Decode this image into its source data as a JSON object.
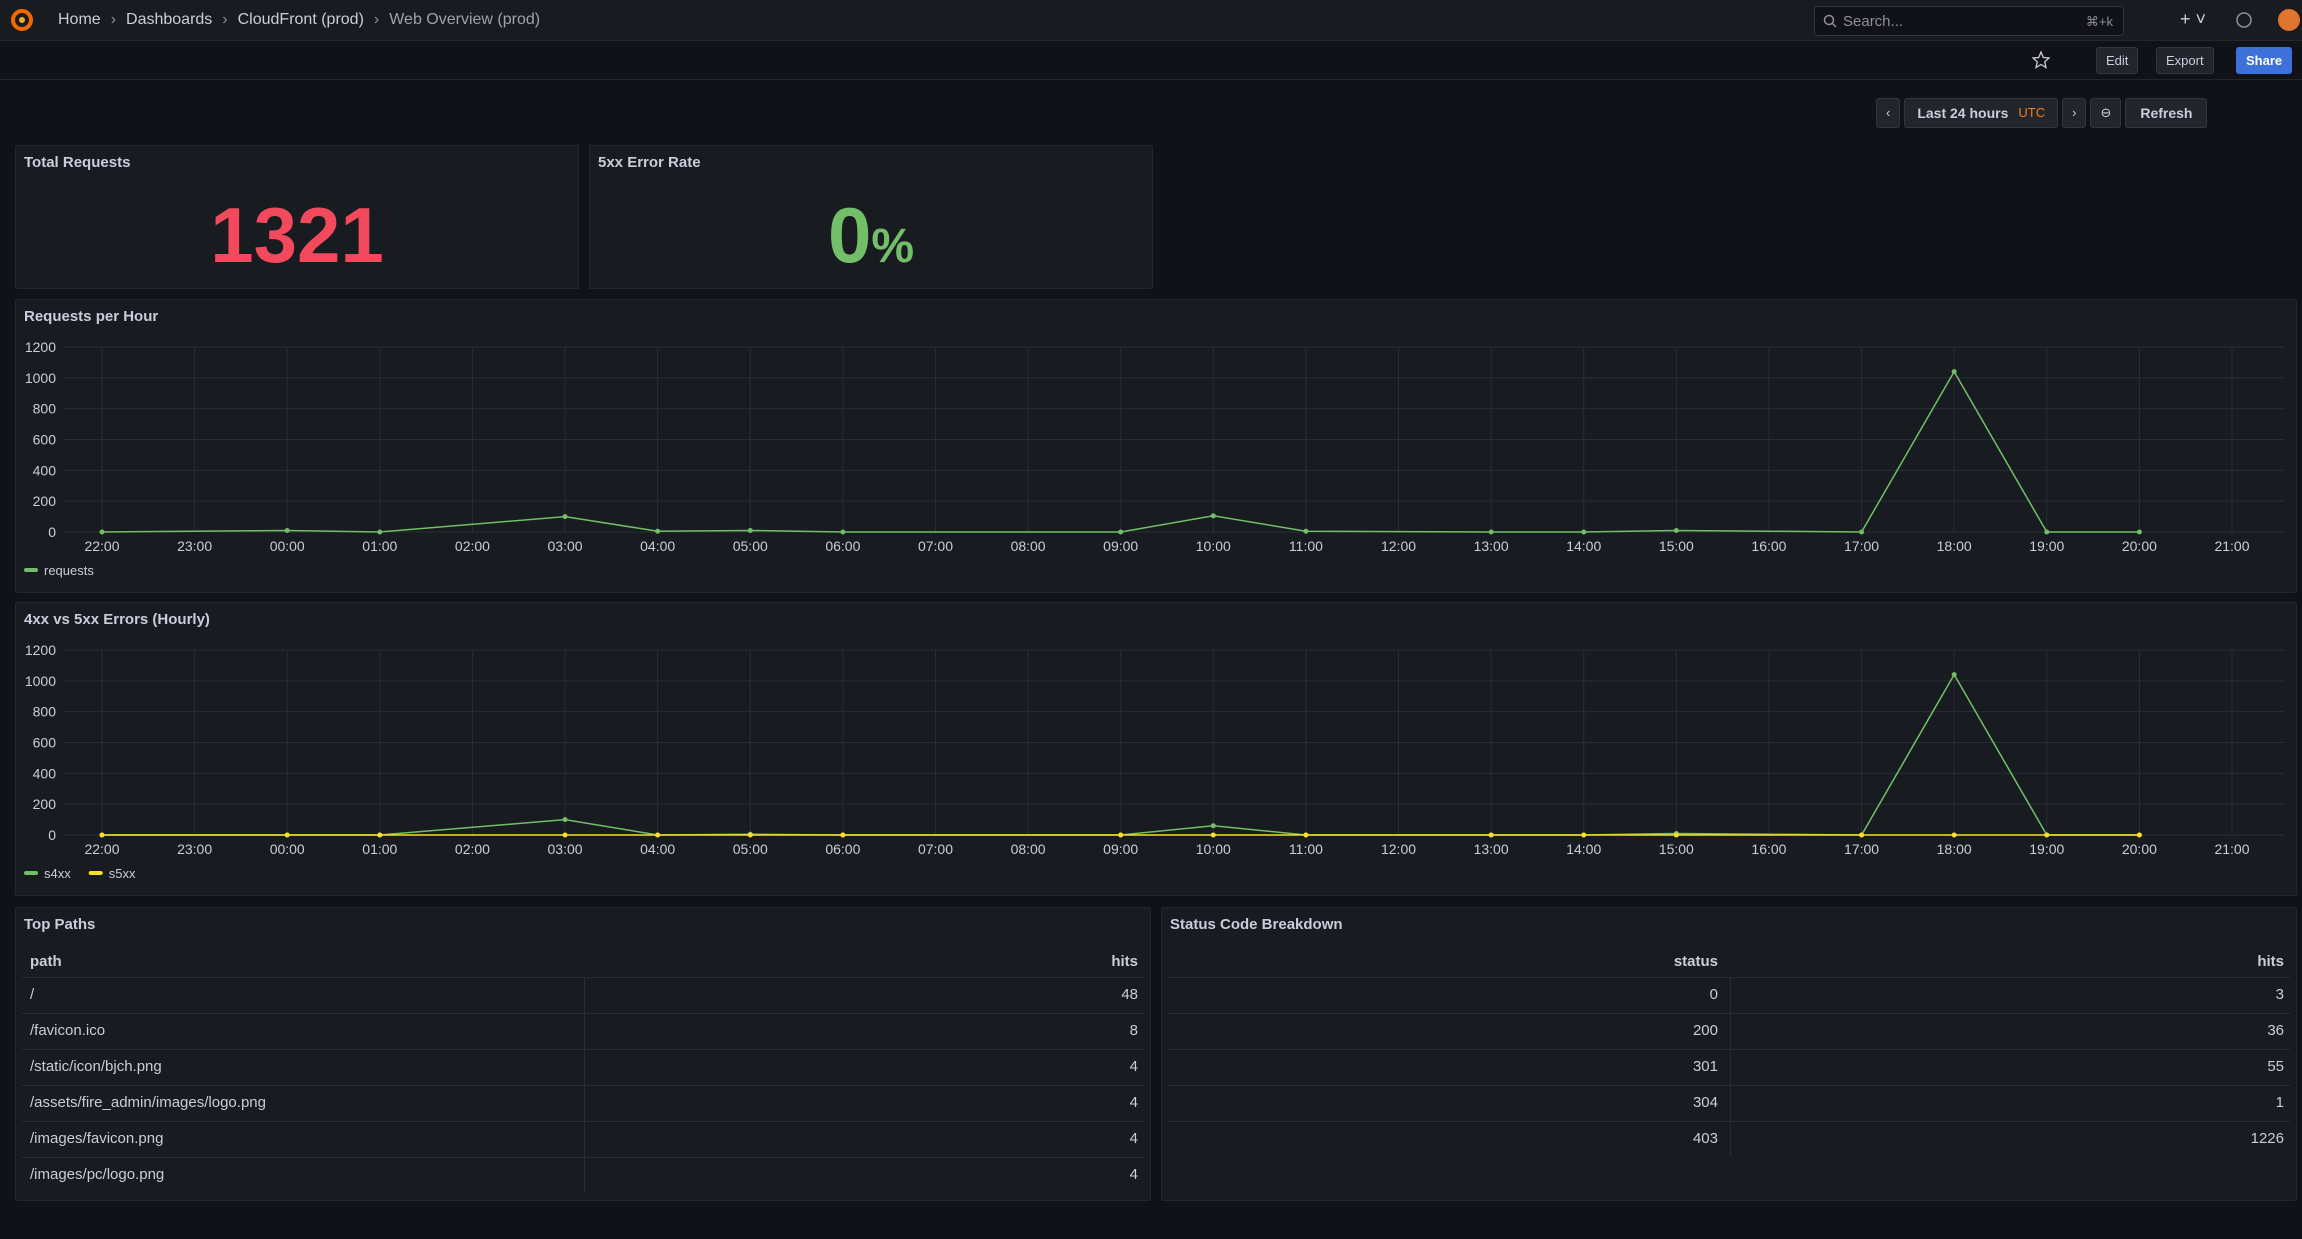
{
  "header": {
    "breadcrumbs": [
      "Home",
      "Dashboards",
      "CloudFront (prod)",
      "Web Overview (prod)"
    ],
    "search": "Search...",
    "shortcut": "⌘+k"
  },
  "toolbar": {
    "edit": "Edit",
    "export": "Export",
    "share": "Share",
    "time_range": "Last 24 hours",
    "timezone": "UTC",
    "refresh": "Refresh"
  },
  "stats": [
    {
      "title": "Total Requests",
      "value": 1321,
      "color": "#f2495c"
    },
    {
      "title": "5xx Error Rate",
      "value": 0,
      "unit": "%",
      "color": "#73bf69"
    }
  ],
  "chart_data": [
    {
      "type": "line",
      "title": "Requests per Hour",
      "x": [
        "22:00",
        "00:00",
        "01:00",
        "03:00",
        "04:00",
        "05:00",
        "06:00",
        "09:00",
        "10:00",
        "11:00",
        "13:00",
        "14:00",
        "15:00",
        "17:00",
        "18:00",
        "19:00",
        "20:00"
      ],
      "series": [
        {
          "name": "requests",
          "color": "#73bf69",
          "values": [
            0,
            10,
            0,
            100,
            5,
            10,
            0,
            0,
            105,
            5,
            0,
            0,
            10,
            0,
            1040,
            0,
            0
          ]
        }
      ],
      "xticks": [
        "22:00",
        "23:00",
        "00:00",
        "01:00",
        "02:00",
        "03:00",
        "04:00",
        "05:00",
        "06:00",
        "07:00",
        "08:00",
        "09:00",
        "10:00",
        "11:00",
        "12:00",
        "13:00",
        "14:00",
        "15:00",
        "16:00",
        "17:00",
        "18:00",
        "19:00",
        "20:00",
        "21:00"
      ],
      "ylim": [
        0,
        1200
      ],
      "yticks": [
        0,
        200,
        400,
        600,
        800,
        1000,
        1200
      ],
      "grid": true
    },
    {
      "type": "line",
      "title": "4xx vs 5xx Errors (Hourly)",
      "x": [
        "22:00",
        "00:00",
        "01:00",
        "03:00",
        "04:00",
        "05:00",
        "06:00",
        "09:00",
        "10:00",
        "11:00",
        "13:00",
        "14:00",
        "15:00",
        "17:00",
        "18:00",
        "19:00",
        "20:00"
      ],
      "series": [
        {
          "name": "s4xx",
          "color": "#73bf69",
          "values": [
            0,
            0,
            0,
            100,
            0,
            5,
            0,
            0,
            60,
            0,
            0,
            0,
            10,
            0,
            1040,
            0,
            0
          ]
        },
        {
          "name": "s5xx",
          "color": "#fade2a",
          "values": [
            0,
            0,
            0,
            0,
            0,
            0,
            0,
            0,
            0,
            0,
            0,
            0,
            0,
            0,
            0,
            0,
            0
          ]
        }
      ],
      "xticks": [
        "22:00",
        "23:00",
        "00:00",
        "01:00",
        "02:00",
        "03:00",
        "04:00",
        "05:00",
        "06:00",
        "07:00",
        "08:00",
        "09:00",
        "10:00",
        "11:00",
        "12:00",
        "13:00",
        "14:00",
        "15:00",
        "16:00",
        "17:00",
        "18:00",
        "19:00",
        "20:00",
        "21:00"
      ],
      "ylim": [
        0,
        1200
      ],
      "yticks": [
        0,
        200,
        400,
        600,
        800,
        1000,
        1200
      ],
      "grid": true
    }
  ],
  "tables": [
    {
      "title": "Top Paths",
      "columns": [
        "path",
        "hits"
      ],
      "rows": [
        [
          "/",
          48
        ],
        [
          "/favicon.ico",
          8
        ],
        [
          "/static/icon/bjch.png",
          4
        ],
        [
          "/assets/fire_admin/images/logo.png",
          4
        ],
        [
          "/images/favicon.png",
          4
        ],
        [
          "/images/pc/logo.png",
          4
        ]
      ]
    },
    {
      "title": "Status Code Breakdown",
      "columns": [
        "status",
        "hits"
      ],
      "rows": [
        [
          0,
          3
        ],
        [
          200,
          36
        ],
        [
          301,
          55
        ],
        [
          304,
          1
        ],
        [
          403,
          1226
        ]
      ]
    }
  ]
}
